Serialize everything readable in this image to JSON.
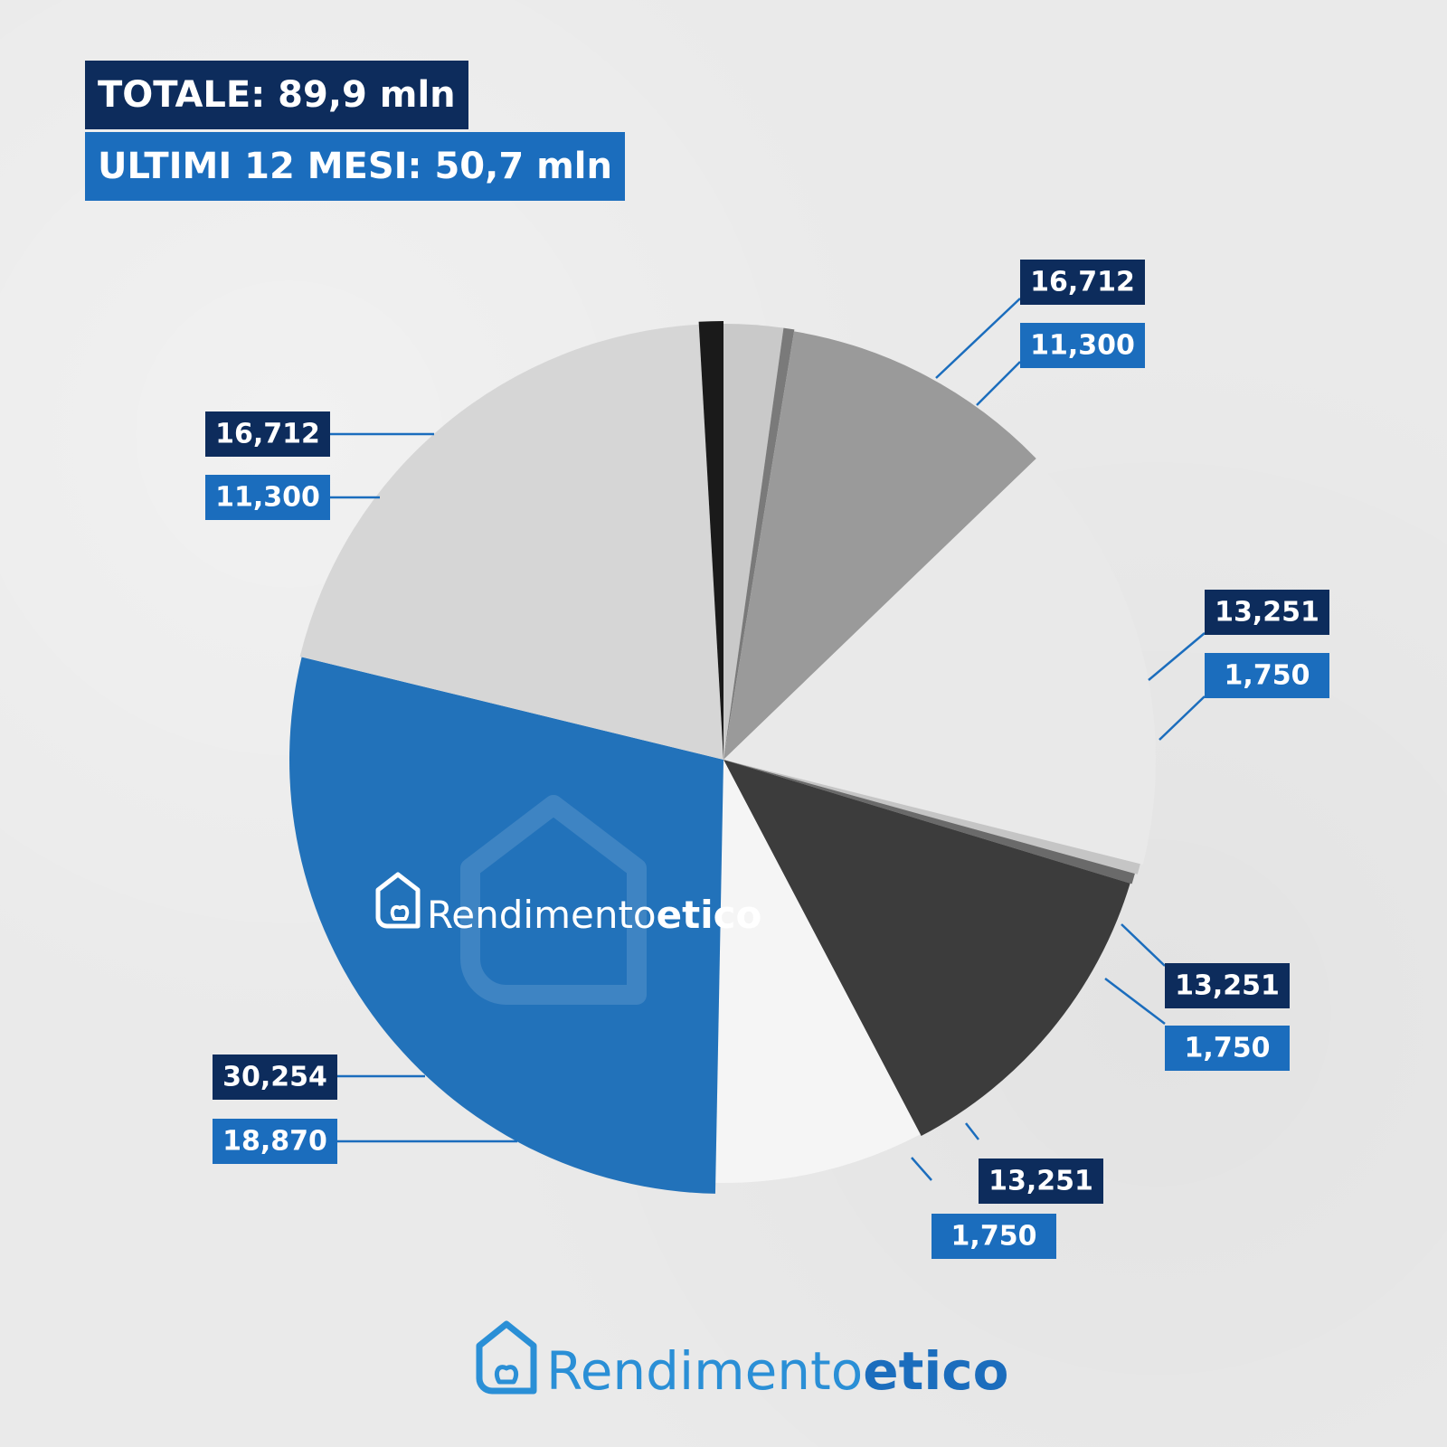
{
  "header": {
    "total": "TOTALE: 89,9 mln",
    "last12": "ULTIMI 12 MESI: 50,7 mln"
  },
  "brand": {
    "name_light": "Rendimento",
    "name_bold": "etico",
    "color_dark": "#0d2c5c",
    "color_blue": "#1b6dbd",
    "color_logo": "#2a8fd6"
  },
  "chart_data": {
    "type": "pie",
    "start_angle_deg": 0,
    "direction": "clockwise",
    "slices": [
      {
        "value": 2.2,
        "color": "#c9c9c9"
      },
      {
        "value": 0.4,
        "color": "#7a7a7a"
      },
      {
        "value": 10.2,
        "color": "#9a9a9a"
      },
      {
        "value": 16.1,
        "color": "#e9e9e9"
      },
      {
        "value": 0.4,
        "color": "#c5c5c5"
      },
      {
        "value": 0.4,
        "color": "#6a6a6a"
      },
      {
        "value": 12.6,
        "color": "#3c3c3c"
      },
      {
        "value": 8.0,
        "color": "#f5f5f5"
      },
      {
        "value": 28.5,
        "color": "#2272ba"
      },
      {
        "value": 20.3,
        "color": "#d6d6d6"
      },
      {
        "value": 0.9,
        "color": "#1a1a1a"
      }
    ],
    "labels": [
      {
        "top": "16,712",
        "bottom": "11,300"
      },
      {
        "top": "13,251",
        "bottom": "1,750"
      },
      {
        "top": "13,251",
        "bottom": "1,750"
      },
      {
        "top": "13,251",
        "bottom": "1,750"
      },
      {
        "top": "30,254",
        "bottom": "18,870"
      },
      {
        "top": "16,712",
        "bottom": "11,300"
      }
    ]
  }
}
